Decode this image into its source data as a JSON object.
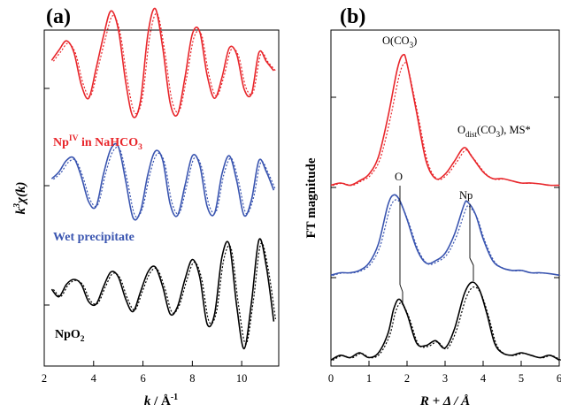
{
  "chart_data": [
    {
      "type": "line",
      "panel_label": "(a)",
      "xlabel_main": "k",
      "xlabel_unit": " / Å",
      "xlabel_sup": "-1",
      "ylabel_pre": "k",
      "ylabel_sup": "3",
      "ylabel_post": "χ(k)",
      "xlim": [
        2,
        11.5
      ],
      "xticks": [
        2,
        4,
        6,
        8,
        10
      ],
      "legend": "none",
      "grid": false,
      "series": [
        {
          "label_parts": [
            "Np",
            "IV",
            " in NaHCO",
            "3"
          ],
          "color": "#e8262b",
          "x": [
            2.3,
            2.6,
            2.9,
            3.2,
            3.5,
            3.8,
            4.1,
            4.4,
            4.7,
            5.0,
            5.3,
            5.6,
            5.9,
            6.2,
            6.5,
            6.8,
            7.1,
            7.4,
            7.7,
            8.0,
            8.3,
            8.6,
            8.9,
            9.2,
            9.5,
            9.8,
            10.1,
            10.4,
            10.7,
            11.0,
            11.3
          ],
          "values": [
            0.45,
            0.9,
            1.3,
            0.8,
            -0.6,
            -1.2,
            0.1,
            1.5,
            2.6,
            1.8,
            -0.5,
            -2.0,
            -1.3,
            1.6,
            2.7,
            1.0,
            -1.4,
            -1.9,
            -0.3,
            1.6,
            1.7,
            -0.2,
            -1.2,
            -0.3,
            1.0,
            0.7,
            -0.8,
            -1.0,
            0.8,
            0.4,
            0.0
          ]
        },
        {
          "label_parts": [
            "Wet precipitate"
          ],
          "color": "#3a55b0",
          "x": [
            2.3,
            2.6,
            2.9,
            3.2,
            3.5,
            3.8,
            4.1,
            4.4,
            4.7,
            5.0,
            5.3,
            5.6,
            5.9,
            6.2,
            6.5,
            6.8,
            7.1,
            7.4,
            7.7,
            8.0,
            8.3,
            8.6,
            8.9,
            9.2,
            9.5,
            9.8,
            10.1,
            10.4,
            10.7,
            11.0,
            11.3
          ],
          "values": [
            0.3,
            0.6,
            1.1,
            1.2,
            0.4,
            -0.7,
            -0.9,
            0.5,
            1.6,
            1.7,
            0.2,
            -1.4,
            -1.1,
            0.5,
            1.5,
            1.1,
            -0.8,
            -1.3,
            0.0,
            1.3,
            0.9,
            -0.9,
            -1.2,
            0.5,
            1.3,
            0.2,
            -1.3,
            -0.6,
            1.1,
            0.6,
            -0.2
          ]
        },
        {
          "label_parts": [
            "NpO",
            "2"
          ],
          "color": "#000000",
          "x": [
            2.3,
            2.6,
            2.9,
            3.2,
            3.5,
            3.8,
            4.1,
            4.4,
            4.7,
            5.0,
            5.3,
            5.6,
            5.9,
            6.2,
            6.5,
            6.8,
            7.1,
            7.4,
            7.7,
            8.0,
            8.3,
            8.6,
            8.9,
            9.2,
            9.5,
            9.8,
            10.1,
            10.4,
            10.7,
            11.0,
            11.3
          ],
          "values": [
            0.1,
            -0.2,
            0.3,
            0.5,
            0.3,
            -0.4,
            -0.5,
            0.2,
            0.8,
            0.6,
            -0.3,
            -0.8,
            0.0,
            0.8,
            1.0,
            0.2,
            -0.9,
            -0.6,
            0.5,
            1.3,
            0.6,
            -1.3,
            -0.9,
            1.4,
            1.9,
            -0.6,
            -2.3,
            -0.4,
            2.1,
            1.0,
            -1.2
          ]
        }
      ]
    },
    {
      "type": "line",
      "panel_label": "(b)",
      "xlabel_main": "R",
      "xlabel_unit": " + Δ / Å",
      "ylabel": "FT magnitude",
      "xlim": [
        0,
        6
      ],
      "xticks": [
        0,
        1,
        2,
        3,
        4,
        5,
        6
      ],
      "legend": "none",
      "grid": false,
      "series": [
        {
          "color": "#e8262b",
          "x": [
            0,
            0.25,
            0.5,
            0.75,
            1.0,
            1.25,
            1.5,
            1.75,
            1.9,
            2.0,
            2.25,
            2.5,
            2.75,
            3.0,
            3.25,
            3.5,
            3.7,
            4.0,
            4.25,
            4.5,
            4.75,
            5.0,
            5.25,
            5.5,
            5.75,
            6.0
          ],
          "values": [
            0.05,
            0.1,
            0.05,
            0.15,
            0.3,
            0.7,
            1.6,
            2.7,
            3.0,
            2.8,
            1.7,
            0.6,
            0.2,
            0.3,
            0.6,
            0.9,
            0.7,
            0.35,
            0.2,
            0.2,
            0.15,
            0.1,
            0.1,
            0.08,
            0.05,
            0.05
          ]
        },
        {
          "color": "#3a55b0",
          "x": [
            0,
            0.25,
            0.5,
            0.75,
            1.0,
            1.25,
            1.5,
            1.65,
            1.8,
            2.0,
            2.25,
            2.5,
            2.75,
            3.0,
            3.25,
            3.5,
            3.6,
            3.8,
            4.0,
            4.25,
            4.5,
            4.75,
            5.0,
            5.25,
            5.5,
            5.75,
            6.0
          ],
          "values": [
            0.05,
            0.1,
            0.1,
            0.15,
            0.3,
            0.7,
            1.5,
            1.7,
            1.6,
            1.2,
            0.6,
            0.3,
            0.35,
            0.5,
            0.9,
            1.5,
            1.55,
            1.3,
            0.8,
            0.35,
            0.2,
            0.15,
            0.15,
            0.1,
            0.1,
            0.08,
            0.05
          ]
        },
        {
          "color": "#000000",
          "x": [
            0,
            0.25,
            0.5,
            0.75,
            1.0,
            1.25,
            1.5,
            1.65,
            1.8,
            2.0,
            2.25,
            2.5,
            2.75,
            3.0,
            3.25,
            3.5,
            3.7,
            3.9,
            4.1,
            4.3,
            4.5,
            4.75,
            5.0,
            5.25,
            5.5,
            5.75,
            6.0
          ],
          "values": [
            0.05,
            0.15,
            0.1,
            0.2,
            0.1,
            0.2,
            0.6,
            1.1,
            1.3,
            1.0,
            0.4,
            0.35,
            0.45,
            0.3,
            0.7,
            1.4,
            1.65,
            1.5,
            1.0,
            0.4,
            0.2,
            0.15,
            0.2,
            0.15,
            0.1,
            0.15,
            0.05
          ]
        }
      ],
      "annotations": [
        {
          "parts": [
            "O(CO",
            "3",
            ")"
          ]
        },
        {
          "parts": [
            "O",
            "dist",
            "(CO",
            "3",
            "), MS*"
          ]
        },
        {
          "parts": [
            "O"
          ]
        },
        {
          "parts": [
            "Np"
          ]
        }
      ]
    }
  ]
}
